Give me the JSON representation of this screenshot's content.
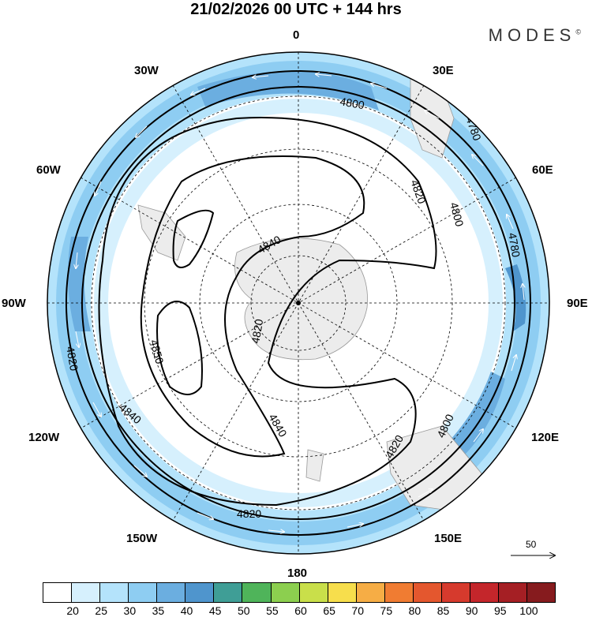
{
  "title": "21/02/2026  00 UTC  + 144 hrs",
  "brand": {
    "name": "MODES",
    "mark": "©"
  },
  "lon_labels": [
    {
      "id": "lon-0",
      "text": "0"
    },
    {
      "id": "lon-30e",
      "text": "30E"
    },
    {
      "id": "lon-60e",
      "text": "60E"
    },
    {
      "id": "lon-90e",
      "text": "90E"
    },
    {
      "id": "lon-120e",
      "text": "120E"
    },
    {
      "id": "lon-150e",
      "text": "150E"
    },
    {
      "id": "lon-180",
      "text": "180"
    },
    {
      "id": "lon-150w",
      "text": "150W"
    },
    {
      "id": "lon-120w",
      "text": "120W"
    },
    {
      "id": "lon-90w",
      "text": "90W"
    },
    {
      "id": "lon-60w",
      "text": "60W"
    },
    {
      "id": "lon-30w",
      "text": "30W"
    }
  ],
  "contour_labels": [
    "4800",
    "4780",
    "4820",
    "4800",
    "4780",
    "4840",
    "4820",
    "4850",
    "4840",
    "4820",
    "4800",
    "4820",
    "4840",
    "4820"
  ],
  "reference_vector": {
    "label": "50"
  },
  "colorbar": {
    "colors": [
      "#ffffff",
      "#d6f0fd",
      "#b4e3fb",
      "#8ecdf2",
      "#6baee0",
      "#4f95cd",
      "#3f9e96",
      "#4fb45a",
      "#8ccf4f",
      "#c9df4a",
      "#f7de4c",
      "#f6ad45",
      "#f07c32",
      "#e4572e",
      "#d63a2d",
      "#c4262b",
      "#a51f24",
      "#861b1e"
    ],
    "ticks": [
      "20",
      "25",
      "30",
      "35",
      "40",
      "45",
      "50",
      "55",
      "60",
      "65",
      "70",
      "75",
      "80",
      "85",
      "90",
      "95",
      "100"
    ]
  }
}
